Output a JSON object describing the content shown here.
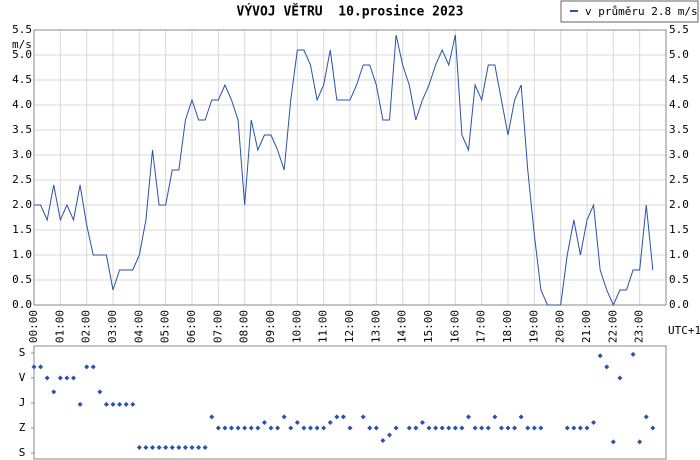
{
  "chart_data": [
    {
      "type": "line",
      "title": "VÝVOJ VĚTRU  10.prosince 2023",
      "y_label": "m/s",
      "x_note": "UTC+1",
      "grid": true,
      "x": [
        0,
        0.25,
        0.5,
        0.75,
        1,
        1.25,
        1.5,
        1.75,
        2,
        2.25,
        2.5,
        2.75,
        3,
        3.25,
        3.5,
        3.75,
        4,
        4.25,
        4.5,
        4.75,
        5,
        5.25,
        5.5,
        5.75,
        6,
        6.25,
        6.5,
        6.75,
        7,
        7.25,
        7.5,
        7.75,
        8,
        8.25,
        8.5,
        8.75,
        9,
        9.25,
        9.5,
        9.75,
        10,
        10.25,
        10.5,
        10.75,
        11,
        11.25,
        11.5,
        11.75,
        12,
        12.25,
        12.5,
        12.75,
        13,
        13.25,
        13.5,
        13.75,
        14,
        14.25,
        14.5,
        14.75,
        15,
        15.25,
        15.5,
        15.75,
        16,
        16.25,
        16.5,
        16.75,
        17,
        17.25,
        17.5,
        17.75,
        18,
        18.25,
        18.5,
        18.75,
        19,
        19.25,
        19.5,
        19.75,
        20,
        20.25,
        20.5,
        20.75,
        21,
        21.25,
        21.5,
        21.75,
        22,
        22.25,
        22.5,
        22.75,
        23,
        23.25,
        23.5,
        23.75
      ],
      "series": [
        {
          "name": "v průměru 2.8 m/s",
          "color": "#2a52a8",
          "values": [
            2.0,
            2.0,
            1.7,
            2.4,
            1.7,
            2.0,
            1.7,
            2.4,
            1.6,
            1.0,
            1.0,
            1.0,
            0.3,
            0.7,
            0.7,
            0.7,
            1.0,
            1.7,
            3.1,
            2.0,
            2.0,
            2.7,
            2.7,
            3.7,
            4.1,
            3.7,
            3.7,
            4.1,
            4.1,
            4.4,
            4.1,
            3.7,
            2.0,
            3.7,
            3.1,
            3.4,
            3.4,
            3.1,
            2.7,
            4.1,
            5.1,
            5.1,
            4.8,
            4.1,
            4.4,
            5.1,
            4.1,
            4.1,
            4.1,
            4.4,
            4.8,
            4.8,
            4.4,
            3.7,
            3.7,
            5.4,
            4.8,
            4.4,
            3.7,
            4.1,
            4.4,
            4.8,
            5.1,
            4.8,
            5.4,
            3.4,
            3.1,
            4.4,
            4.1,
            4.8,
            4.8,
            4.1,
            3.4,
            4.1,
            4.4,
            2.7,
            1.4,
            0.3,
            0.0,
            0.0,
            0.0,
            1.0,
            1.7,
            1.0,
            1.7,
            2.0,
            0.7,
            0.3,
            0.0,
            0.3,
            0.3,
            0.7,
            0.7,
            2.0,
            0.7,
            null
          ]
        }
      ],
      "xlim": [
        0,
        24
      ],
      "xticks": [
        {
          "value": 0,
          "label": "00:00"
        },
        {
          "value": 1,
          "label": "01:00"
        },
        {
          "value": 2,
          "label": "02:00"
        },
        {
          "value": 3,
          "label": "03:00"
        },
        {
          "value": 4,
          "label": "04:00"
        },
        {
          "value": 5,
          "label": "05:00"
        },
        {
          "value": 6,
          "label": "06:00"
        },
        {
          "value": 7,
          "label": "07:00"
        },
        {
          "value": 8,
          "label": "08:00"
        },
        {
          "value": 9,
          "label": "09:00"
        },
        {
          "value": 10,
          "label": "10:00"
        },
        {
          "value": 11,
          "label": "11:00"
        },
        {
          "value": 12,
          "label": "12:00"
        },
        {
          "value": 13,
          "label": "13:00"
        },
        {
          "value": 14,
          "label": "14:00"
        },
        {
          "value": 15,
          "label": "15:00"
        },
        {
          "value": 16,
          "label": "16:00"
        },
        {
          "value": 17,
          "label": "17:00"
        },
        {
          "value": 18,
          "label": "18:00"
        },
        {
          "value": 19,
          "label": "19:00"
        },
        {
          "value": 20,
          "label": "20:00"
        },
        {
          "value": 21,
          "label": "21:00"
        },
        {
          "value": 22,
          "label": "22:00"
        },
        {
          "value": 23,
          "label": "23:00"
        }
      ],
      "ylim": [
        0,
        5.5
      ],
      "yticks": [
        {
          "value": 0,
          "label": "0.0"
        },
        0.5,
        {
          "value": 1,
          "label": "1.0"
        },
        1.5,
        {
          "value": 2,
          "label": "2.0"
        },
        2.5,
        {
          "value": 3,
          "label": "3.0"
        },
        3.5,
        {
          "value": 4,
          "label": "4.0"
        },
        4.5,
        {
          "value": 5,
          "label": "5.0"
        },
        5.5
      ]
    },
    {
      "type": "scatter",
      "color": "#2a52a8",
      "x": [
        0,
        0.25,
        0.5,
        0.75,
        1,
        1.25,
        1.5,
        1.75,
        2,
        2.25,
        2.5,
        2.75,
        3,
        3.25,
        3.5,
        3.75,
        4,
        4.25,
        4.5,
        4.75,
        5,
        5.25,
        5.5,
        5.75,
        6,
        6.25,
        6.5,
        6.75,
        7,
        7.25,
        7.5,
        7.75,
        8,
        8.25,
        8.5,
        8.75,
        9,
        9.25,
        9.5,
        9.75,
        10,
        10.25,
        10.5,
        10.75,
        11,
        11.25,
        11.5,
        11.75,
        12,
        12.25,
        12.5,
        12.75,
        13,
        13.25,
        13.5,
        13.75,
        14,
        14.25,
        14.5,
        14.75,
        15,
        15.25,
        15.5,
        15.75,
        16,
        16.25,
        16.5,
        16.75,
        17,
        17.25,
        17.5,
        17.75,
        18,
        18.25,
        18.5,
        18.75,
        19,
        19.25,
        19.5,
        19.75,
        20,
        20.25,
        20.5,
        20.75,
        21,
        21.25,
        21.5,
        21.75,
        22,
        22.25,
        22.5,
        22.75,
        23,
        23.25,
        23.5,
        23.75
      ],
      "values": [
        50,
        50,
        90,
        140,
        90,
        90,
        90,
        185,
        50,
        50,
        140,
        185,
        185,
        185,
        185,
        185,
        340,
        340,
        340,
        340,
        340,
        340,
        340,
        340,
        340,
        340,
        340,
        230,
        270,
        270,
        270,
        270,
        270,
        270,
        270,
        250,
        270,
        270,
        230,
        270,
        250,
        270,
        270,
        270,
        270,
        250,
        230,
        230,
        270,
        null,
        230,
        270,
        270,
        315,
        295,
        270,
        null,
        270,
        270,
        250,
        270,
        270,
        270,
        270,
        270,
        270,
        230,
        270,
        270,
        270,
        230,
        270,
        270,
        270,
        230,
        270,
        270,
        270,
        null,
        null,
        null,
        270,
        270,
        270,
        270,
        250,
        10,
        50,
        320,
        90,
        null,
        5,
        320,
        230,
        270,
        null
      ],
      "xlim": [
        0,
        24
      ],
      "ylim": [
        0,
        360
      ],
      "yticks": [
        {
          "value": 0,
          "label": "S"
        },
        {
          "value": 90,
          "label": "V"
        },
        {
          "value": 180,
          "label": "J"
        },
        {
          "value": 270,
          "label": "Z"
        },
        {
          "value": 360,
          "label": "S"
        }
      ]
    }
  ]
}
